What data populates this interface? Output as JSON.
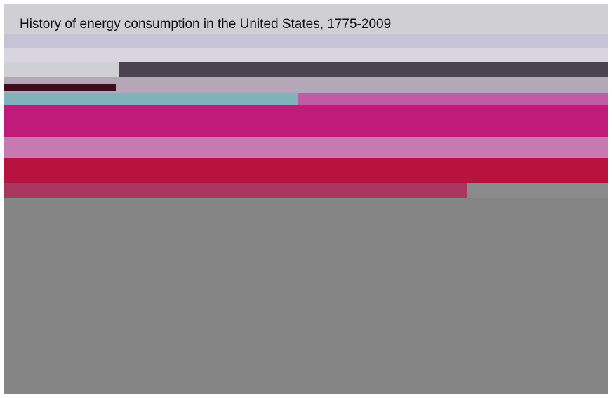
{
  "title": "History of energy consumption in the United States, 1775-2009"
}
